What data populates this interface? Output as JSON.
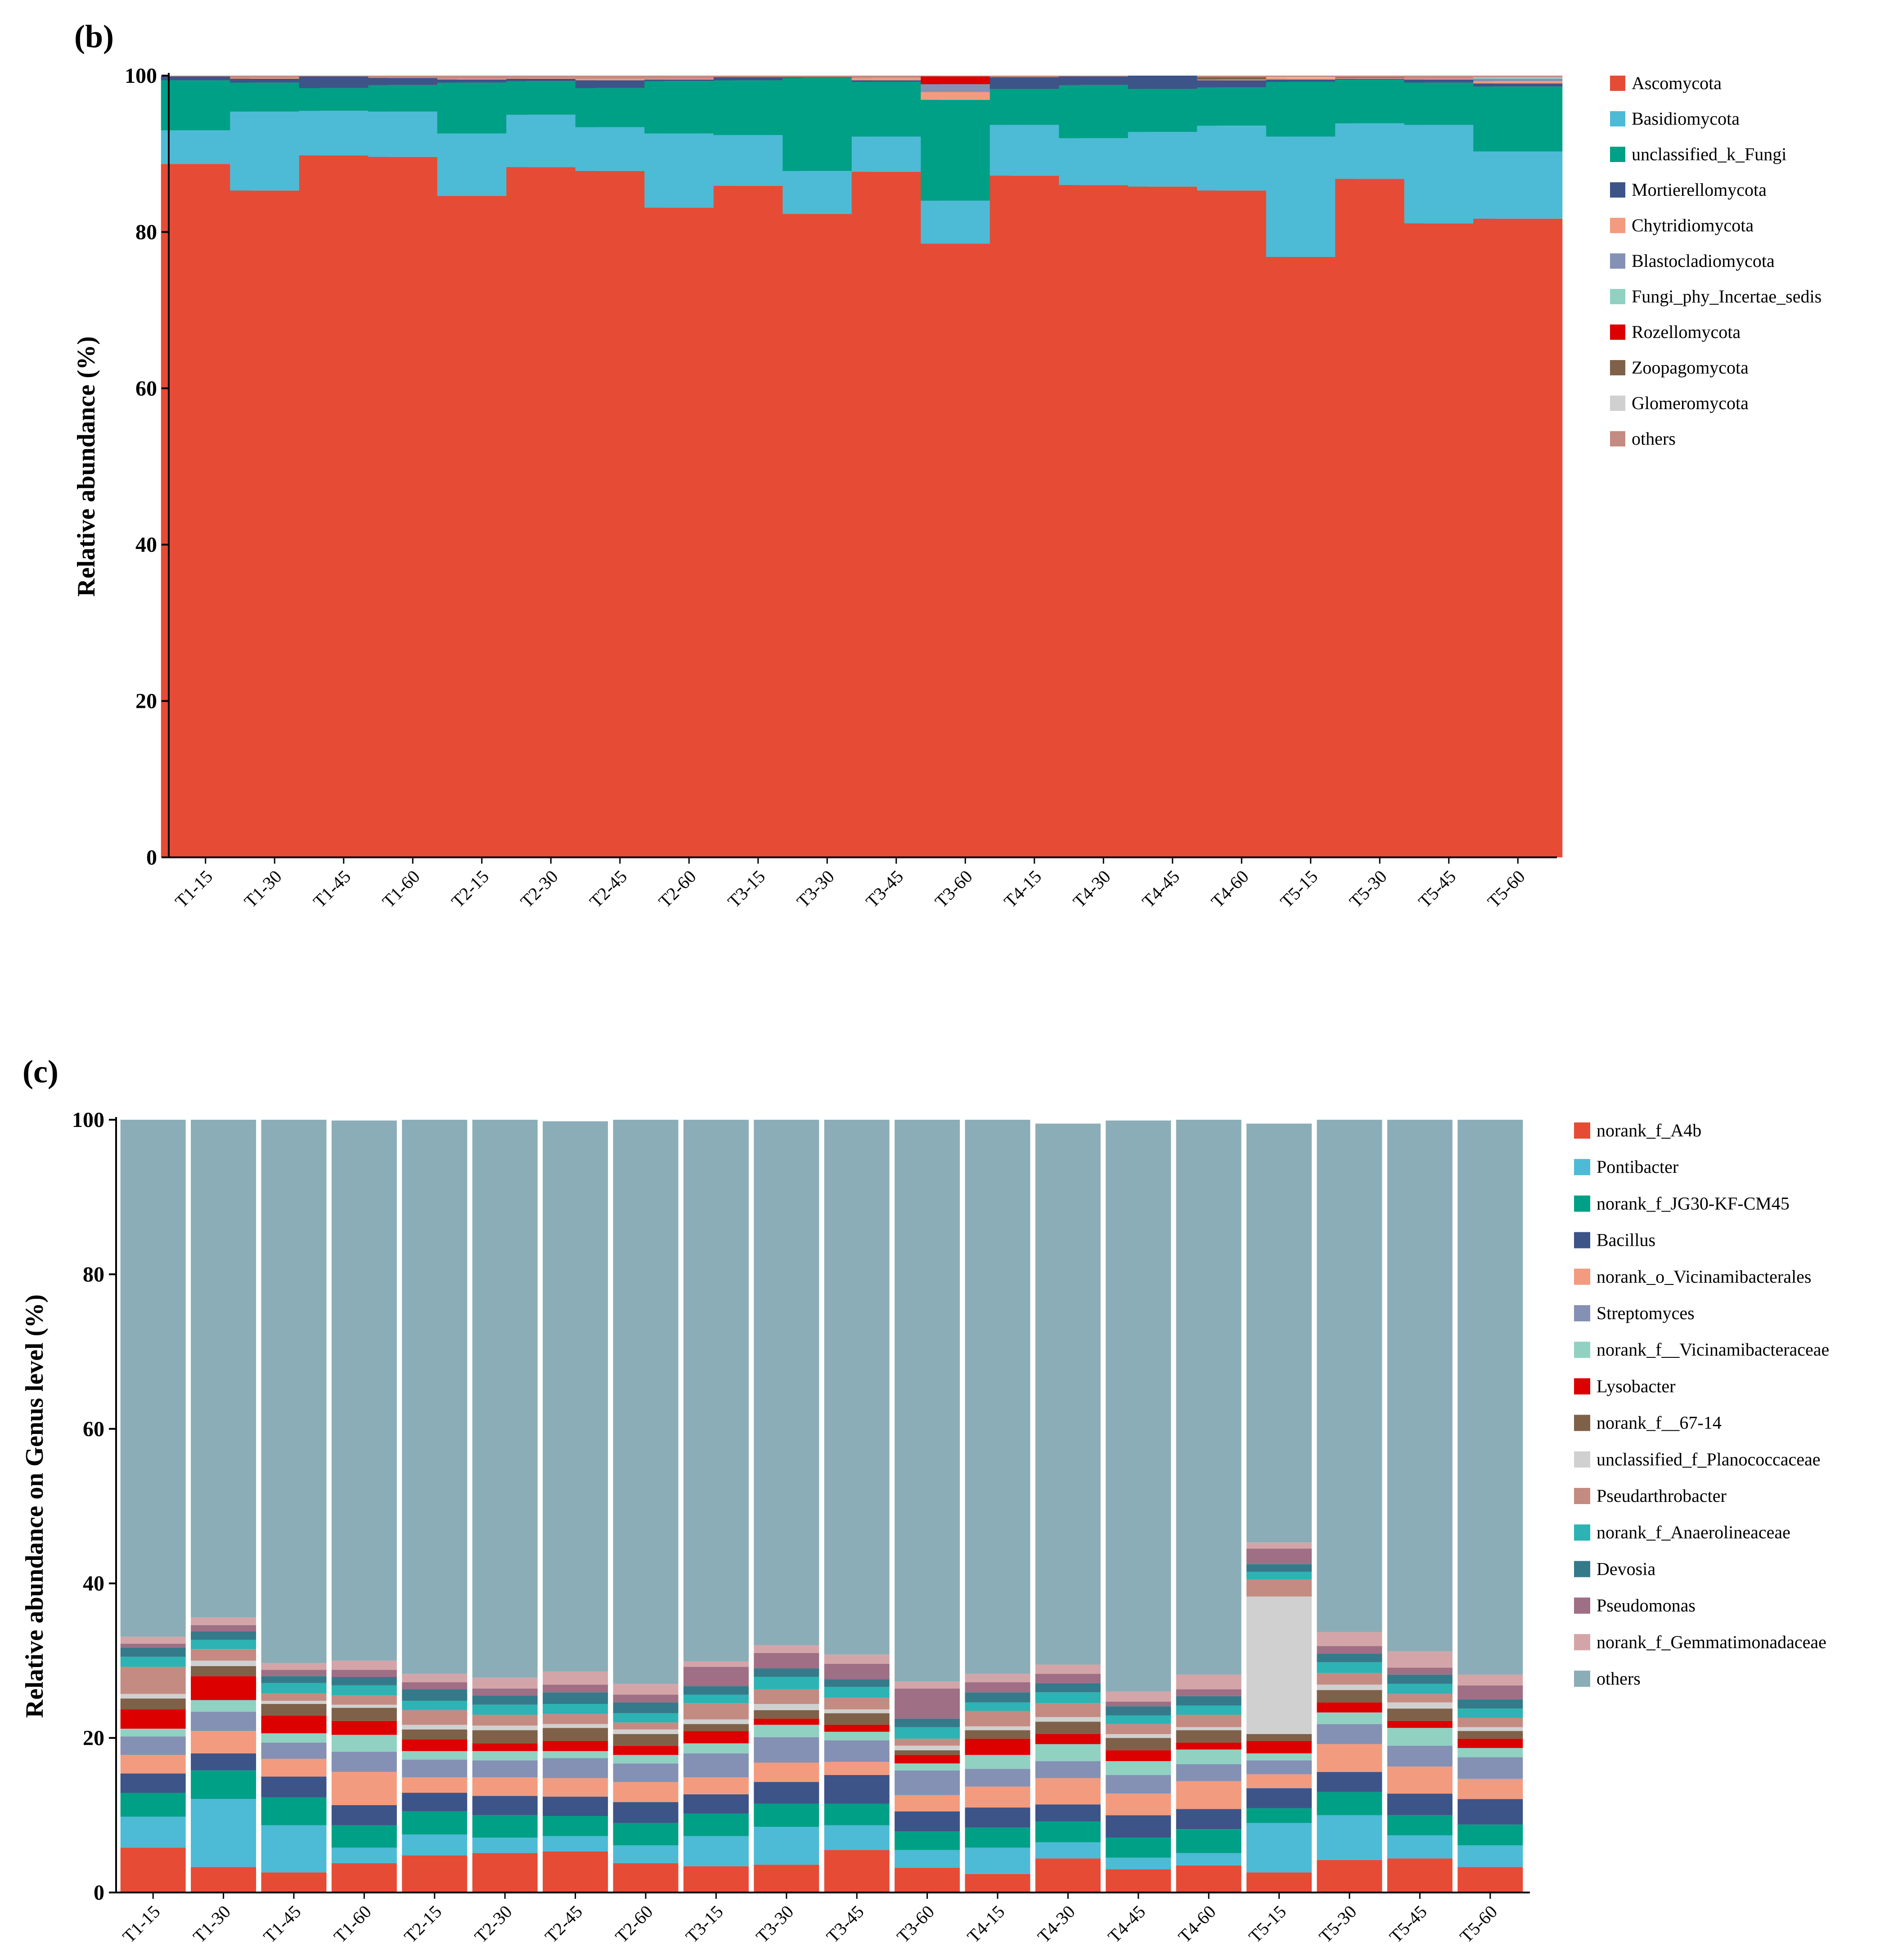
{
  "chart_data": [
    {
      "type": "bar",
      "stacked": true,
      "panel_label": "(b)",
      "title": "",
      "ylabel": "Relative abundance (%)",
      "ylim": [
        0,
        100
      ],
      "yticks": [
        0,
        20,
        40,
        60,
        80,
        100
      ],
      "categories": [
        "T1-15",
        "T1-30",
        "T1-45",
        "T1-60",
        "T2-15",
        "T2-30",
        "T2-45",
        "T2-60",
        "T3-15",
        "T3-30",
        "T3-45",
        "T3-60",
        "T4-15",
        "T4-30",
        "T4-45",
        "T4-60",
        "T5-15",
        "T5-30",
        "T5-45",
        "T5-60"
      ],
      "legend_position": "right",
      "series": [
        {
          "name": "Ascomycota",
          "color": "#E64B35",
          "values": [
            88.7,
            85.3,
            89.8,
            89.6,
            84.6,
            88.3,
            87.8,
            83.1,
            85.9,
            82.3,
            87.7,
            78.5,
            87.2,
            86.0,
            85.8,
            85.3,
            76.8,
            86.8,
            81.1,
            81.7
          ]
        },
        {
          "name": "Basidiomycota",
          "color": "#4DBBD5",
          "values": [
            4.3,
            10.1,
            5.7,
            5.8,
            8.0,
            6.7,
            5.6,
            9.5,
            6.5,
            5.5,
            4.5,
            5.5,
            6.5,
            6.0,
            7.0,
            8.3,
            15.4,
            7.1,
            12.6,
            8.6
          ]
        },
        {
          "name": "unclassified_k_Fungi",
          "color": "#00A087",
          "values": [
            6.4,
            3.7,
            2.9,
            3.4,
            6.5,
            4.3,
            5.0,
            6.7,
            7.0,
            11.9,
            7.0,
            12.9,
            4.6,
            6.8,
            5.5,
            4.9,
            7.0,
            5.6,
            5.4,
            8.3
          ]
        },
        {
          "name": "Mortierellomycota",
          "color": "#3C5488",
          "values": [
            0.5,
            0.5,
            1.5,
            0.9,
            0.4,
            0.3,
            1.0,
            0.2,
            0.4,
            0.1,
            0.2,
            0.0,
            1.5,
            1.1,
            1.7,
            0.9,
            0.3,
            0.1,
            0.4,
            0.4
          ]
        },
        {
          "name": "Chytridiomycota",
          "color": "#F39B7F",
          "values": [
            0.0,
            0.1,
            0.0,
            0.0,
            0.1,
            0.1,
            0.2,
            0.1,
            0.0,
            0.0,
            0.3,
            1.0,
            0.0,
            0.0,
            0.0,
            0.1,
            0.2,
            0.1,
            0.1,
            0.3
          ]
        },
        {
          "name": "Blastocladiomycota",
          "color": "#8491B4",
          "values": [
            0.0,
            0.0,
            0.0,
            0.0,
            0.0,
            0.0,
            0.0,
            0.0,
            0.0,
            0.0,
            0.0,
            1.0,
            0.0,
            0.0,
            0.0,
            0.0,
            0.0,
            0.0,
            0.0,
            0.3
          ]
        },
        {
          "name": "Fungi_phy_Incertae_sedis",
          "color": "#91D1C2",
          "values": [
            0.0,
            0.0,
            0.0,
            0.0,
            0.0,
            0.0,
            0.0,
            0.0,
            0.0,
            0.0,
            0.0,
            0.0,
            0.0,
            0.0,
            0.0,
            0.0,
            0.0,
            0.0,
            0.0,
            0.2
          ]
        },
        {
          "name": "Rozellomycota",
          "color": "#DC0000",
          "values": [
            0.0,
            0.0,
            0.0,
            0.0,
            0.0,
            0.0,
            0.0,
            0.0,
            0.0,
            0.0,
            0.0,
            1.0,
            0.0,
            0.0,
            0.0,
            0.0,
            0.0,
            0.0,
            0.0,
            0.0
          ]
        },
        {
          "name": "Zoopagomycota",
          "color": "#7E6148",
          "values": [
            0.0,
            0.0,
            0.0,
            0.0,
            0.0,
            0.0,
            0.0,
            0.0,
            0.0,
            0.0,
            0.0,
            0.0,
            0.0,
            0.0,
            0.0,
            0.3,
            0.0,
            0.1,
            0.0,
            0.0
          ]
        },
        {
          "name": "Glomeromycota",
          "color": "#D0D0D0",
          "values": [
            0.0,
            0.0,
            0.0,
            0.0,
            0.0,
            0.0,
            0.0,
            0.0,
            0.0,
            0.0,
            0.0,
            0.0,
            0.0,
            0.0,
            0.0,
            0.0,
            0.1,
            0.0,
            0.0,
            0.0
          ]
        },
        {
          "name": "others",
          "color": "#C48B82",
          "values": [
            0.1,
            0.3,
            0.1,
            0.3,
            0.4,
            0.3,
            0.4,
            0.4,
            0.2,
            0.2,
            0.3,
            0.1,
            0.2,
            0.1,
            0.0,
            0.2,
            0.2,
            0.2,
            0.4,
            0.2
          ]
        }
      ]
    },
    {
      "type": "bar",
      "stacked": true,
      "panel_label": "(c)",
      "title": "",
      "ylabel": "Relative abundance on Genus level    (%)",
      "ylim": [
        0,
        100
      ],
      "yticks": [
        0,
        20,
        40,
        60,
        80,
        100
      ],
      "categories": [
        "T1-15",
        "T1-30",
        "T1-45",
        "T1-60",
        "T2-15",
        "T2-30",
        "T2-45",
        "T2-60",
        "T3-15",
        "T3-30",
        "T3-45",
        "T3-60",
        "T4-15",
        "T4-30",
        "T4-45",
        "T4-60",
        "T5-15",
        "T5-30",
        "T5-45",
        "T5-60"
      ],
      "legend_position": "right",
      "series": [
        {
          "name": "norank_f_A4b",
          "color": "#E64B35",
          "values": [
            5.8,
            3.3,
            2.6,
            3.8,
            4.8,
            5.1,
            5.3,
            3.8,
            3.4,
            3.6,
            5.5,
            3.2,
            2.4,
            4.4,
            3.0,
            3.5,
            2.6,
            4.2,
            4.4,
            3.3
          ]
        },
        {
          "name": "Pontibacter",
          "color": "#4DBBD5",
          "values": [
            4.0,
            8.8,
            6.1,
            2.0,
            2.7,
            2.0,
            2.0,
            2.3,
            3.9,
            4.9,
            3.2,
            2.3,
            3.4,
            2.1,
            1.5,
            1.6,
            6.4,
            5.8,
            3.0,
            2.8
          ]
        },
        {
          "name": "norank_f_JG30-KF-CM45",
          "color": "#00A087",
          "values": [
            3.1,
            3.7,
            3.6,
            2.9,
            3.0,
            2.9,
            2.6,
            2.9,
            2.9,
            3.0,
            2.8,
            2.4,
            2.6,
            2.7,
            2.6,
            3.1,
            1.9,
            3.0,
            2.6,
            2.7
          ]
        },
        {
          "name": "Bacillus",
          "color": "#3C5488",
          "values": [
            2.5,
            2.2,
            2.7,
            2.6,
            2.4,
            2.5,
            2.5,
            2.7,
            2.5,
            2.8,
            3.7,
            2.6,
            2.6,
            2.2,
            2.9,
            2.6,
            2.6,
            2.6,
            2.8,
            3.3
          ]
        },
        {
          "name": "norank_o_Vicinamibacterales",
          "color": "#F39B7F",
          "values": [
            2.4,
            2.9,
            2.3,
            4.3,
            2.0,
            2.4,
            2.4,
            2.6,
            2.2,
            2.5,
            1.7,
            2.1,
            2.7,
            3.4,
            2.8,
            3.6,
            1.8,
            3.6,
            3.5,
            2.6
          ]
        },
        {
          "name": "Streptomyces",
          "color": "#8491B4",
          "values": [
            2.4,
            2.5,
            2.1,
            2.6,
            2.3,
            2.2,
            2.6,
            2.4,
            3.1,
            3.3,
            2.8,
            3.2,
            2.3,
            2.2,
            2.4,
            2.2,
            1.8,
            2.6,
            2.7,
            2.8
          ]
        },
        {
          "name": "norank_f__Vicinamibacteraceae",
          "color": "#91D1C2",
          "values": [
            1.0,
            1.5,
            1.2,
            2.2,
            1.1,
            1.2,
            0.9,
            1.1,
            1.3,
            1.6,
            1.1,
            0.9,
            1.8,
            2.2,
            1.8,
            1.9,
            0.9,
            1.5,
            2.3,
            1.2
          ]
        },
        {
          "name": "Lysobacter",
          "color": "#DC0000",
          "values": [
            2.5,
            3.1,
            2.3,
            1.8,
            1.5,
            1.0,
            1.3,
            1.2,
            1.6,
            0.8,
            0.9,
            1.1,
            2.1,
            1.3,
            1.4,
            0.9,
            1.6,
            1.3,
            0.9,
            1.2
          ]
        },
        {
          "name": "norank_f__67-14",
          "color": "#7E6148",
          "values": [
            1.4,
            1.3,
            1.5,
            1.7,
            1.3,
            1.7,
            1.7,
            1.5,
            0.9,
            1.1,
            1.5,
            0.6,
            1.1,
            1.6,
            1.6,
            1.6,
            0.9,
            1.6,
            1.6,
            1.0
          ]
        },
        {
          "name": "unclassified_f_Planococcaceae",
          "color": "#D0D0D0",
          "values": [
            0.6,
            0.7,
            0.4,
            0.4,
            0.6,
            0.6,
            0.5,
            0.6,
            0.6,
            0.8,
            0.5,
            0.6,
            0.5,
            0.6,
            0.5,
            0.4,
            17.8,
            0.7,
            0.8,
            0.5
          ]
        },
        {
          "name": "Pseudarthrobacter",
          "color": "#C48B82",
          "values": [
            3.5,
            1.5,
            1.0,
            1.2,
            1.9,
            1.4,
            1.3,
            0.9,
            2.1,
            1.9,
            1.5,
            0.9,
            2.0,
            1.8,
            1.3,
            1.6,
            2.2,
            1.5,
            1.1,
            1.2
          ]
        },
        {
          "name": "norank_f_Anaerolineaceae",
          "color": "#2DB3B3",
          "values": [
            1.3,
            1.2,
            1.3,
            1.3,
            1.2,
            1.3,
            1.3,
            1.2,
            1.1,
            1.6,
            1.4,
            1.5,
            1.1,
            1.4,
            1.1,
            1.2,
            1.0,
            1.4,
            1.3,
            1.2
          ]
        },
        {
          "name": "Devosia",
          "color": "#357A8A",
          "values": [
            1.2,
            1.1,
            0.9,
            1.1,
            1.5,
            1.2,
            1.5,
            1.4,
            1.1,
            1.1,
            1.0,
            1.1,
            1.3,
            1.2,
            1.2,
            1.2,
            1.0,
            1.1,
            1.2,
            1.2
          ]
        },
        {
          "name": "Pseudomonas",
          "color": "#9E6F85",
          "values": [
            0.5,
            0.8,
            0.8,
            0.9,
            0.9,
            0.9,
            1.0,
            1.0,
            2.5,
            2.0,
            2.0,
            3.9,
            1.3,
            1.2,
            0.6,
            0.9,
            2.0,
            1.0,
            0.9,
            1.8
          ]
        },
        {
          "name": "norank_f_Gemmatimonadaceae",
          "color": "#D4A5A8",
          "values": [
            0.9,
            1.0,
            0.9,
            1.2,
            1.1,
            1.4,
            1.7,
            1.4,
            0.7,
            1.0,
            1.2,
            0.9,
            1.1,
            1.2,
            1.3,
            1.9,
            0.8,
            1.8,
            2.1,
            1.4
          ]
        },
        {
          "name": "others",
          "color": "#8BADB8",
          "values": [
            66.9,
            64.4,
            70.3,
            69.9,
            71.7,
            72.2,
            71.2,
            73.0,
            70.1,
            68.0,
            69.2,
            72.7,
            71.7,
            70.0,
            73.9,
            72.0,
            54.2,
            67.2,
            70.0,
            72.0
          ]
        }
      ]
    }
  ]
}
